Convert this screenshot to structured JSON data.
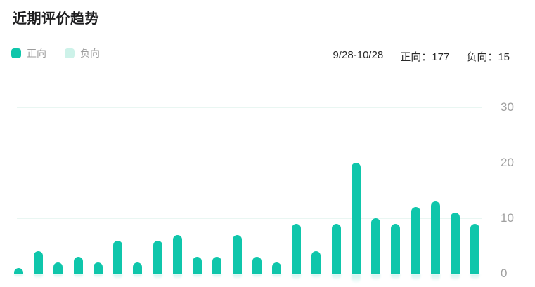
{
  "header": {
    "title": "近期评价趋势",
    "legend": [
      {
        "label": "正向",
        "color": "#0fc6ab"
      },
      {
        "label": "负向",
        "color": "#cdf2e9"
      }
    ],
    "summary": {
      "date_range": "9/28-10/28",
      "positive_text": "正向：177",
      "negative_text": "负向：15"
    }
  },
  "colors": {
    "bar_positive": "#0fc6ab",
    "bar_negative_legend": "#cdf2e9",
    "gridline": "#e9f6f2",
    "tick_label": "#a0a0a0",
    "reflection": "rgba(15,198,171,0.22)"
  },
  "chart_data": {
    "type": "bar",
    "title": "近期评价趋势",
    "legend_entries": [
      "正向",
      "负向"
    ],
    "legend_position": "top-left",
    "axis_side": "right",
    "grid": true,
    "x_labels_visible": false,
    "num_bars": 24,
    "y_ticks": [
      0,
      10,
      20,
      30
    ],
    "ylim": [
      0,
      30
    ],
    "series": [
      {
        "name": "正向",
        "color": "#0fc6ab",
        "values": [
          1,
          4,
          2,
          3,
          2,
          6,
          2,
          6,
          7,
          3,
          3,
          7,
          3,
          2,
          9,
          4,
          9,
          20,
          10,
          9,
          12,
          13,
          11,
          9
        ]
      }
    ]
  }
}
